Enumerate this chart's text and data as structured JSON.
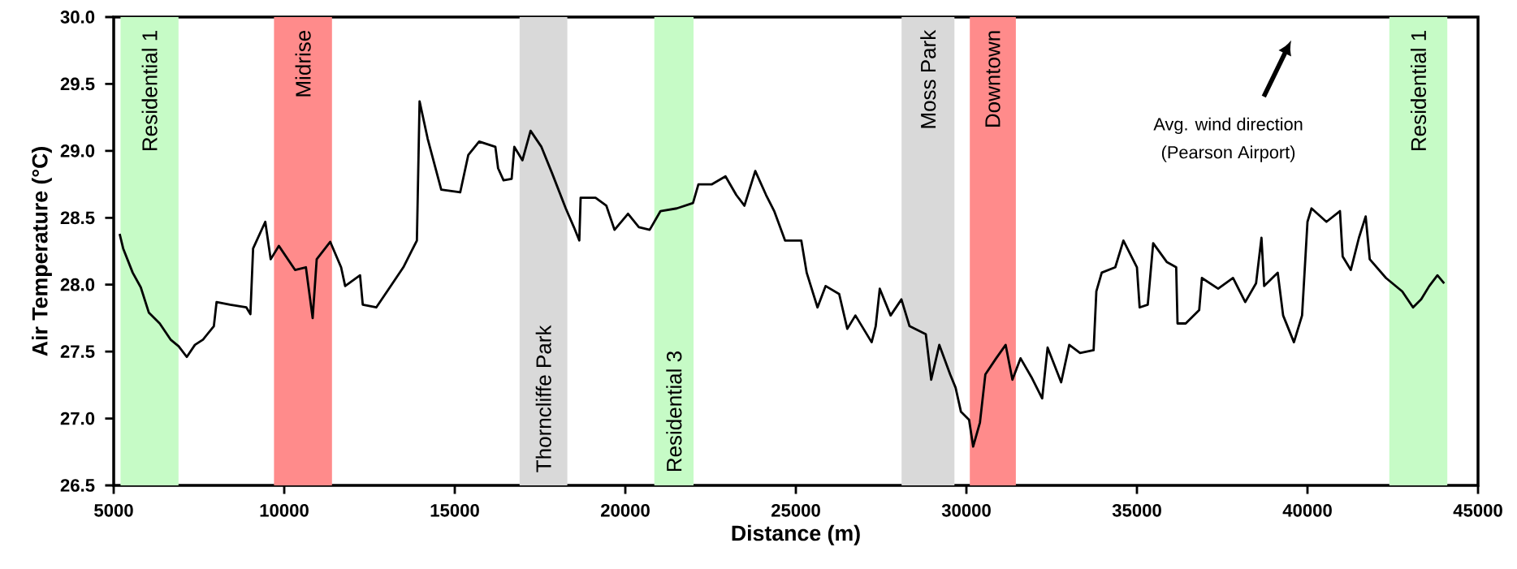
{
  "chart_data": {
    "type": "line",
    "xlabel": "Distance (m)",
    "ylabel": "Air Temperature (°C)",
    "xlim": [
      5000,
      45000
    ],
    "xticks": [
      5000,
      10000,
      15000,
      20000,
      25000,
      30000,
      35000,
      40000,
      45000
    ],
    "ylim": [
      26.5,
      30.0
    ],
    "yticks": [
      26.5,
      {
        "value": 27,
        "label": "27.0"
      },
      27.5,
      {
        "value": 28,
        "label": "28.0"
      },
      28.5,
      {
        "value": 29,
        "label": "29.0"
      },
      29.5,
      {
        "value": 30,
        "label": "30.0"
      }
    ],
    "bands": [
      {
        "axis": "x",
        "from": 5200,
        "to": 6900,
        "label": "Residential 1",
        "color": "#c6fbc6"
      },
      {
        "axis": "x",
        "from": 9700,
        "to": 11400,
        "label": "Midrise",
        "color": "#ff8b8b"
      },
      {
        "axis": "x",
        "from": 16900,
        "to": 18300,
        "label": "Thorncliffe Park",
        "color": "#d9d9d9"
      },
      {
        "axis": "x",
        "from": 20850,
        "to": 22000,
        "label": "Residential 3",
        "color": "#c6fbc6"
      },
      {
        "axis": "x",
        "from": 28100,
        "to": 29650,
        "label": "Moss Park",
        "color": "#d9d9d9"
      },
      {
        "axis": "x",
        "from": 30100,
        "to": 31450,
        "label": "Downtown",
        "color": "#ff8b8b"
      },
      {
        "axis": "x",
        "from": 42400,
        "to": 44100,
        "label": "Residential 1",
        "color": "#c6fbc6"
      }
    ],
    "annotations": [
      "Avg. wind direction",
      "(Pearson Airport)"
    ],
    "series": [
      {
        "color": "#000000",
        "x": [
          5174,
          5278,
          5556,
          5794,
          6032,
          6349,
          6667,
          6905,
          7143,
          7381,
          7619,
          7936,
          8016,
          8413,
          8889,
          9008,
          9087,
          9444,
          9603,
          9841,
          10317,
          10635,
          10833,
          10952,
          11349,
          11667,
          11786,
          12222,
          12302,
          12698,
          13016,
          13492,
          13889,
          13968,
          14206,
          14603,
          15159,
          15397,
          15714,
          16190,
          16270,
          16429,
          16667,
          16746,
          16984,
          17222,
          17540,
          17857,
          18254,
          18492,
          18651,
          18690,
          19127,
          19444,
          19683,
          20079,
          20397,
          20714,
          21032,
          21508,
          21984,
          22143,
          22540,
          22937,
          23254,
          23492,
          23810,
          24127,
          24365,
          24683,
          25159,
          25317,
          25635,
          25873,
          26270,
          26508,
          26746,
          27222,
          27341,
          27460,
          27778,
          28095,
          28333,
          28810,
          28968,
          29206,
          29524,
          29683,
          29841,
          30079,
          30198,
          30397,
          30556,
          30873,
          31151,
          31349,
          31587,
          31905,
          32222,
          32381,
          32778,
          33016,
          33333,
          33730,
          33810,
          33968,
          34365,
          34603,
          35000,
          35079,
          35317,
          35476,
          35873,
          36151,
          36190,
          36429,
          36825,
          36905,
          37381,
          37817,
          38175,
          38492,
          38651,
          38730,
          39127,
          39286,
          39603,
          39841,
          40000,
          40119,
          40556,
          40952,
          41032,
          41270,
          41508,
          41706,
          41825,
          42302,
          42778,
          43095,
          43333,
          43571,
          43810,
          44008
        ],
        "values": [
          28.38,
          28.27,
          28.09,
          27.98,
          27.79,
          27.71,
          27.59,
          27.54,
          27.46,
          27.55,
          27.59,
          27.69,
          27.87,
          27.85,
          27.83,
          27.78,
          28.27,
          28.47,
          28.19,
          28.29,
          28.11,
          28.13,
          27.75,
          28.19,
          28.32,
          28.13,
          27.99,
          28.07,
          27.85,
          27.83,
          27.95,
          28.13,
          28.33,
          29.37,
          29.09,
          28.71,
          28.69,
          28.97,
          29.07,
          29.03,
          28.87,
          28.78,
          28.79,
          29.03,
          28.93,
          29.15,
          29.03,
          28.83,
          28.57,
          28.43,
          28.33,
          28.65,
          28.65,
          28.59,
          28.41,
          28.53,
          28.43,
          28.41,
          28.55,
          28.57,
          28.61,
          28.75,
          28.75,
          28.81,
          28.67,
          28.59,
          28.85,
          28.67,
          28.55,
          28.33,
          28.33,
          28.09,
          27.83,
          27.99,
          27.93,
          27.67,
          27.77,
          27.57,
          27.69,
          27.97,
          27.77,
          27.89,
          27.69,
          27.63,
          27.29,
          27.55,
          27.33,
          27.23,
          27.05,
          26.99,
          26.79,
          26.97,
          27.33,
          27.45,
          27.55,
          27.29,
          27.45,
          27.31,
          27.15,
          27.53,
          27.27,
          27.55,
          27.49,
          27.51,
          27.95,
          28.09,
          28.13,
          28.33,
          28.13,
          27.83,
          27.85,
          28.31,
          28.17,
          28.13,
          27.71,
          27.71,
          27.81,
          28.05,
          27.97,
          28.05,
          27.87,
          28.01,
          28.35,
          27.99,
          28.09,
          27.77,
          27.57,
          27.77,
          28.47,
          28.57,
          28.47,
          28.55,
          28.21,
          28.11,
          28.35,
          28.51,
          28.19,
          28.05,
          27.95,
          27.83,
          27.89,
          27.99,
          28.07,
          28.01
        ]
      }
    ]
  }
}
